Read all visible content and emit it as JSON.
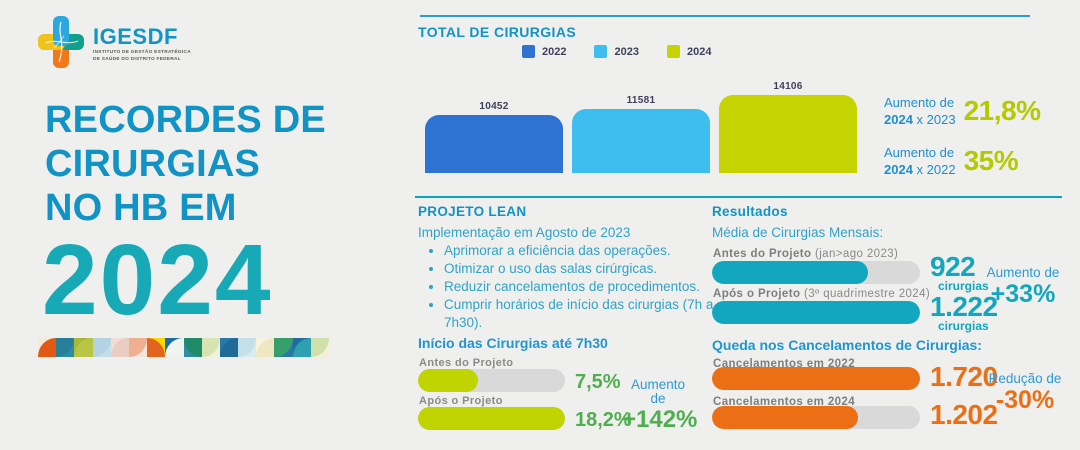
{
  "palette": {
    "background": "#efefee",
    "title_blue": "#1193c6",
    "year_teal": "#18a9b6",
    "teal_text": "#2fa3c8",
    "light_blue_text": "#2d9ad6",
    "lime": "#bfd400",
    "lime_value": "#b5c900",
    "green_value": "#4fae4e",
    "teal_fill": "#12a7be",
    "orange_fill": "#ed6f15",
    "track_gray": "#d9d9d9",
    "top_rule": "#2e9bd6",
    "mid_rule": "#0aa4bf"
  },
  "logo": {
    "name": "IGESDF",
    "subtitle_line1": "INSTITUTO DE GESTÃO ESTRATÉGICA",
    "subtitle_line2": "DE SAÚDE DO DISTRITO FEDERAL"
  },
  "hero": {
    "title_line1": "RECORDES DE",
    "title_line2": "CIRURGIAS",
    "title_line3": "NO HB EM",
    "year": "2024"
  },
  "top_section": {
    "title": "TOTAL DE CIRURGIAS",
    "legend": [
      {
        "label": "2022",
        "color": "#2e72d2"
      },
      {
        "label": "2023",
        "color": "#3ebeef"
      },
      {
        "label": "2024",
        "color": "#c5d400"
      }
    ],
    "bars": [
      {
        "label": "10452",
        "value": 10452,
        "color": "#2e72d2"
      },
      {
        "label": "11581",
        "value": 11581,
        "color": "#3ebeef"
      },
      {
        "label": "14106",
        "value": 14106,
        "color": "#c5d400"
      }
    ],
    "badges": [
      {
        "prefix": "Aumento de",
        "year_bold": "2024",
        "vs": " x 2023",
        "value": "21,8%"
      },
      {
        "prefix": "Aumento de",
        "year_bold": "2024",
        "vs": " x 2022",
        "value": "35%"
      }
    ]
  },
  "lean": {
    "title": "PROJETO LEAN",
    "subtitle": "Implementação em Agosto de 2023",
    "bullets": [
      "Aprimorar a eficiência das operações.",
      "Otimizar o uso das salas cirúrgicas.",
      "Reduzir cancelamentos de procedimentos.",
      "Cumprir horários de início das cirurgias (7h a 7h30)."
    ]
  },
  "start_times": {
    "title": "Início das Cirurgias até 7h30",
    "rows": [
      {
        "label": "Antes do Projeto",
        "display": "7,5%",
        "value": 7.5,
        "pct": 41
      },
      {
        "label": "Após o Projeto",
        "display": "18,2%",
        "value": 18.2,
        "pct": 100
      }
    ],
    "badge_prefix": "Aumento de",
    "badge_value": "+142%"
  },
  "results": {
    "title": "Resultados",
    "monthly": {
      "subtitle": "Média de Cirurgias Mensais:",
      "rows": [
        {
          "label_bold": "Antes do Projeto",
          "label_note": " (jan>ago 2023)",
          "display": "922",
          "unit": "cirurgias",
          "value": 922,
          "pct": 75
        },
        {
          "label_bold": "Após o Projeto",
          "label_note": " (3º quadrimestre 2024)",
          "display": "1.222",
          "unit": "cirurgias",
          "value": 1222,
          "pct": 100
        }
      ],
      "badge_prefix": "Aumento de",
      "badge_value": "+33%"
    },
    "cancellations": {
      "subtitle": "Queda nos Cancelamentos de Cirurgias:",
      "rows": [
        {
          "label": "Cancelamentos em 2022",
          "display": "1.720",
          "value": 1720,
          "pct": 100
        },
        {
          "label": "Cancelamentos em 2024",
          "display": "1.202",
          "value": 1202,
          "pct": 70
        }
      ],
      "badge_prefix": "Redução de",
      "badge_value": "-30%"
    }
  },
  "strip_tiles": [
    {
      "bg": "#f3ead9",
      "fg": "#e05a14",
      "arc": "tl"
    },
    {
      "bg": "#2e8ca6",
      "fg": "#27809a",
      "arc": "br"
    },
    {
      "bg": "#a9b934",
      "fg": "#b9c544",
      "arc": "tl"
    },
    {
      "bg": "#c5dde9",
      "fg": "#b3d2e2",
      "arc": "br"
    },
    {
      "bg": "#f3dcd3",
      "fg": "#eacdc2",
      "arc": "tl"
    },
    {
      "bg": "#f6e3da",
      "fg": "#efaf90",
      "arc": "br"
    },
    {
      "bg": "#f7d908",
      "fg": "#e2641e",
      "arc": "tr"
    },
    {
      "bg": "#1d6e9e",
      "fg": "#eff5ee",
      "arc": "tl"
    },
    {
      "bg": "#2e8ca6",
      "fg": "#1e8a66",
      "arc": "bl"
    },
    {
      "bg": "#eef2d8",
      "fg": "#d7e3b0",
      "arc": "br"
    },
    {
      "bg": "#2878a8",
      "fg": "#1f6a96",
      "arc": "tl"
    },
    {
      "bg": "#d9ecf2",
      "fg": "#c3e0ea",
      "arc": "br"
    },
    {
      "bg": "#f8f3dc",
      "fg": "#efe7c2",
      "arc": "tl"
    },
    {
      "bg": "#2878a8",
      "fg": "#35a06a",
      "arc": "br"
    },
    {
      "bg": "#1d6e9e",
      "fg": "#2fa0b0",
      "arc": "tl"
    },
    {
      "bg": "#f4f0d8",
      "fg": "#cfe0a8",
      "arc": "br"
    }
  ],
  "chart_data": [
    {
      "type": "bar",
      "title": "TOTAL DE CIRURGIAS",
      "categories": [
        "2022",
        "2023",
        "2024"
      ],
      "values": [
        10452,
        11581,
        14106
      ],
      "colors": [
        "#2e72d2",
        "#3ebeef",
        "#c5d400"
      ],
      "legend_position": "top",
      "grid": false,
      "annotations": [
        "Aumento de 2024 x 2023: 21,8%",
        "Aumento de 2024 x 2022: 35%"
      ]
    },
    {
      "type": "bar",
      "orientation": "horizontal",
      "title": "Início das Cirurgias até 7h30",
      "categories": [
        "Antes do Projeto",
        "Após o Projeto"
      ],
      "values": [
        7.5,
        18.2
      ],
      "unit": "%",
      "annotations": [
        "Aumento de +142%"
      ]
    },
    {
      "type": "bar",
      "orientation": "horizontal",
      "title": "Média de Cirurgias Mensais",
      "categories": [
        "Antes do Projeto (jan>ago 2023)",
        "Após o Projeto (3º quadrimestre 2024)"
      ],
      "values": [
        922,
        1222
      ],
      "unit": "cirurgias",
      "annotations": [
        "Aumento de +33%"
      ]
    },
    {
      "type": "bar",
      "orientation": "horizontal",
      "title": "Queda nos Cancelamentos de Cirurgias",
      "categories": [
        "Cancelamentos em 2022",
        "Cancelamentos em 2024"
      ],
      "values": [
        1720,
        1202
      ],
      "annotations": [
        "Redução de -30%"
      ]
    }
  ]
}
